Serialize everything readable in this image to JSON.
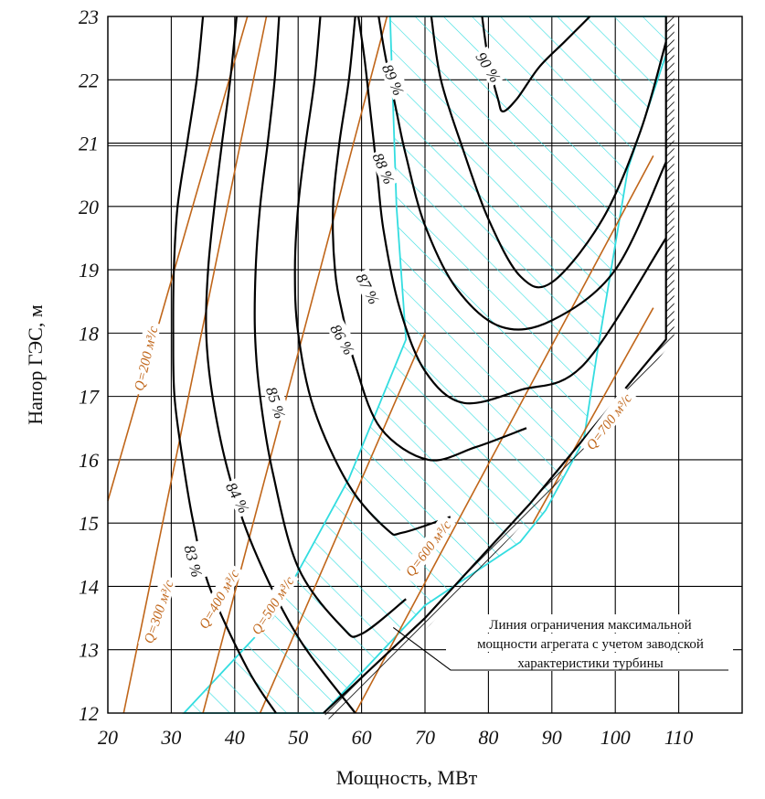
{
  "chart_data": {
    "type": "line",
    "title": "",
    "xlabel": "Мощность, МВт",
    "ylabel": "Напор ГЭС, м",
    "xlim": [
      20,
      120
    ],
    "ylim": [
      12,
      23
    ],
    "x_ticks": [
      "20",
      "30",
      "40",
      "50",
      "60",
      "70",
      "80",
      "90",
      "100",
      "110"
    ],
    "y_ticks": [
      "12",
      "13",
      "14",
      "15",
      "16",
      "17",
      "18",
      "19",
      "20",
      "21",
      "22",
      "23"
    ],
    "grid": true,
    "colors": {
      "efficiency": "#000000",
      "flow": "#c0661a",
      "zone": "#33dde0",
      "limit": "#000000"
    },
    "efficiency_curves": [
      {
        "label": "83 %",
        "label_at": [
          33.5,
          14.4
        ],
        "label_angle": 75,
        "points": [
          [
            46.5,
            12.0
          ],
          [
            42,
            12.7
          ],
          [
            36,
            14.0
          ],
          [
            33.5,
            15.0
          ],
          [
            31.8,
            16.0
          ],
          [
            30.5,
            17.0
          ],
          [
            30.3,
            18.0
          ],
          [
            30.4,
            19.0
          ],
          [
            31,
            20.0
          ],
          [
            32.5,
            21.0
          ],
          [
            34,
            22.0
          ],
          [
            35,
            23.0
          ]
        ]
      },
      {
        "label": "84 %",
        "label_at": [
          40.5,
          15.4
        ],
        "label_angle": 62,
        "points": [
          [
            59,
            12.0
          ],
          [
            50,
            13.2
          ],
          [
            43,
            14.6
          ],
          [
            39,
            15.8
          ],
          [
            36.5,
            17.0
          ],
          [
            35.5,
            18.0
          ],
          [
            35.8,
            19.0
          ],
          [
            36.8,
            20.0
          ],
          [
            38,
            21.0
          ],
          [
            39.3,
            22.0
          ],
          [
            40.3,
            23.0
          ]
        ]
      },
      {
        "label": "85 %",
        "label_at": [
          46.5,
          16.9
        ],
        "label_angle": 72,
        "points": [
          [
            67,
            13.8
          ],
          [
            60,
            13.25
          ],
          [
            57,
            13.35
          ],
          [
            50,
            14.3
          ],
          [
            46,
            15.8
          ],
          [
            44,
            17.0
          ],
          [
            43.2,
            18.0
          ],
          [
            43.3,
            19.0
          ],
          [
            44,
            20.0
          ],
          [
            45.2,
            21.0
          ],
          [
            46.3,
            22.0
          ],
          [
            47,
            23.0
          ]
        ]
      },
      {
        "label": "86 %",
        "label_at": [
          57.0,
          17.9
        ],
        "label_angle": 60,
        "points": [
          [
            74,
            15.1
          ],
          [
            66.5,
            14.85
          ],
          [
            64,
            14.9
          ],
          [
            58,
            15.6
          ],
          [
            52.5,
            16.8
          ],
          [
            50,
            18.0
          ],
          [
            49.5,
            19.0
          ],
          [
            50,
            20.0
          ],
          [
            51.2,
            21.0
          ],
          [
            52.6,
            22.0
          ],
          [
            53.5,
            23.0
          ]
        ]
      },
      {
        "label": "87 %",
        "label_at": [
          61.0,
          18.7
        ],
        "label_angle": 62,
        "points": [
          [
            86,
            16.5
          ],
          [
            78,
            16.2
          ],
          [
            70.5,
            16.0
          ],
          [
            63,
            16.5
          ],
          [
            59,
            17.5
          ],
          [
            57,
            18.3
          ],
          [
            55.8,
            19.0
          ],
          [
            55.5,
            20.0
          ],
          [
            56.5,
            21.0
          ],
          [
            58,
            22.0
          ],
          [
            59,
            23.0
          ]
        ]
      },
      {
        "label": "88 %",
        "label_at": [
          63.5,
          20.6
        ],
        "label_angle": 66,
        "points": [
          [
            108,
            19.5
          ],
          [
            95,
            17.5
          ],
          [
            85,
            17.1
          ],
          [
            76,
            16.9
          ],
          [
            70,
            17.4
          ],
          [
            66,
            18.4
          ],
          [
            63.5,
            19.6
          ],
          [
            62.5,
            20.5
          ],
          [
            61.5,
            21.4
          ],
          [
            60.5,
            22.3
          ],
          [
            59.5,
            23.0
          ]
        ]
      },
      {
        "label": "89 %",
        "label_at": [
          65.0,
          22.0
        ],
        "label_angle": 66,
        "points": [
          [
            108,
            20.7
          ],
          [
            100,
            19.0
          ],
          [
            90,
            18.2
          ],
          [
            82,
            18.1
          ],
          [
            75,
            18.7
          ],
          [
            70,
            19.7
          ],
          [
            67,
            20.8
          ],
          [
            65.5,
            21.5
          ],
          [
            63.7,
            22.4
          ],
          [
            62.7,
            23.0
          ]
        ]
      },
      {
        "label": "",
        "label_at": null,
        "label_angle": 0,
        "points": [
          [
            108,
            22.6
          ],
          [
            104,
            21.2
          ],
          [
            98,
            19.8
          ],
          [
            90,
            18.8
          ],
          [
            85,
            18.9
          ],
          [
            80,
            19.8
          ],
          [
            76,
            20.9
          ],
          [
            72.5,
            22.0
          ],
          [
            71,
            23.0
          ]
        ]
      },
      {
        "label": "90 %",
        "label_at": [
          80.0,
          22.2
        ],
        "label_angle": 58,
        "points": [
          [
            79,
            23.0
          ],
          [
            80,
            22.3
          ],
          [
            81.5,
            21.7
          ],
          [
            82.3,
            21.5
          ],
          [
            84.5,
            21.7
          ],
          [
            88,
            22.2
          ],
          [
            92,
            22.6
          ],
          [
            96,
            23.0
          ]
        ]
      }
    ],
    "flow_lines": [
      {
        "label": "Q=200 м³/с",
        "label_at": [
          26.0,
          17.6
        ],
        "label_angle": -77,
        "points": [
          [
            20,
            15.35
          ],
          [
            42,
            23.0
          ]
        ]
      },
      {
        "label": "Q=300 м³/с",
        "label_at": [
          28.0,
          13.6
        ],
        "label_angle": -71,
        "points": [
          [
            22.5,
            12.0
          ],
          [
            45,
            23.0
          ]
        ]
      },
      {
        "label": "Q=400 м³/с",
        "label_at": [
          37.5,
          13.8
        ],
        "label_angle": -60,
        "points": [
          [
            35,
            12.0
          ],
          [
            64,
            23.0
          ]
        ]
      },
      {
        "label": "Q=500 м³/с",
        "label_at": [
          46.0,
          13.7
        ],
        "label_angle": -57,
        "points": [
          [
            44,
            12.0
          ],
          [
            70,
            18.0
          ]
        ]
      },
      {
        "label": "Q=600 м³/с",
        "label_at": [
          70.5,
          14.6
        ],
        "label_angle": -53,
        "points": [
          [
            59,
            12.0
          ],
          [
            106,
            20.8
          ]
        ]
      },
      {
        "label": "Q=700 м³/с",
        "label_at": [
          99.0,
          16.6
        ],
        "label_angle": -53,
        "points": [
          [
            87,
            15.0
          ],
          [
            106,
            18.4
          ]
        ]
      }
    ],
    "operating_zone": [
      [
        32,
        12.0
      ],
      [
        46,
        13.5
      ],
      [
        58,
        15.7
      ],
      [
        67,
        17.9
      ],
      [
        65.5,
        20.0
      ],
      [
        64.5,
        23.0
      ],
      [
        108,
        23.0
      ],
      [
        108,
        22.4
      ],
      [
        102,
        20.6
      ],
      [
        97,
        17.6
      ],
      [
        95,
        16.3
      ],
      [
        89,
        15.2
      ],
      [
        85,
        14.7
      ],
      [
        70,
        13.7
      ],
      [
        54,
        12.0
      ]
    ],
    "limit_line": [
      [
        54,
        12.0
      ],
      [
        70,
        13.5
      ],
      [
        86.5,
        15.3
      ],
      [
        108,
        17.9
      ],
      [
        108,
        23.0
      ]
    ],
    "annotation": {
      "lines": [
        "Линия ограничения максимальной",
        "мощности агрегата с учетом заводской",
        "характеристики турбины"
      ],
      "points_to": [
        65,
        13.35
      ]
    }
  }
}
